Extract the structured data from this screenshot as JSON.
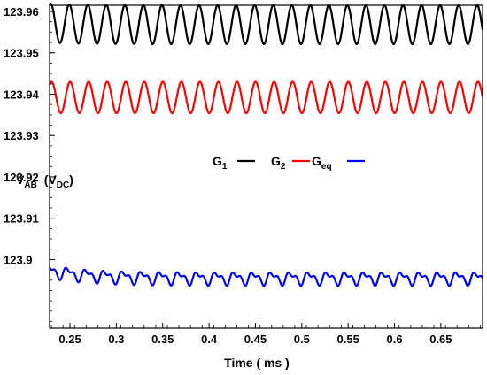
{
  "chart_data": {
    "type": "line",
    "xlabel": "Time ( ms )",
    "ylabel": {
      "main": "V",
      "sub": "AB",
      "unit_prefix": "(V",
      "unit_sub": "DC",
      "unit_suffix": ")"
    },
    "xlim": [
      0.228,
      0.695
    ],
    "ylim": [
      123.8834,
      123.9615
    ],
    "x_ticks": [
      0.25,
      0.3,
      0.35,
      0.4,
      0.45,
      0.5,
      0.55,
      0.6,
      0.65
    ],
    "x_tick_labels": [
      "0.25",
      "0.3",
      "0.35",
      "0.4",
      "0.45",
      "0.5",
      "0.55",
      "0.6",
      "0.65"
    ],
    "y_ticks": [
      123.96,
      123.95,
      123.94,
      123.93,
      123.92,
      123.91,
      123.9
    ],
    "y_tick_labels": [
      "123.96",
      "123.95",
      "123.94",
      "123.93",
      "123.92",
      "123.91",
      "123.9"
    ],
    "grid": false,
    "legend_placement": "center-right",
    "series": [
      {
        "name": "G",
        "name_sub": "1",
        "color": "#000000",
        "mean": 123.9568,
        "amplitude": 0.0047,
        "period_ms": 0.02,
        "phase": 1.2,
        "shape": "sine"
      },
      {
        "name": "G",
        "name_sub": "2",
        "color": "#ff0000",
        "mean": 123.9392,
        "amplitude": 0.0038,
        "period_ms": 0.02,
        "phase": 0.9,
        "shape": "sine"
      },
      {
        "name": "G",
        "name_sub": "eq",
        "color": "#0000ff",
        "mean": 123.8955,
        "amplitude": 0.0016,
        "period_ms": 0.02,
        "phase": 1.5,
        "shape": "distorted"
      }
    ]
  }
}
